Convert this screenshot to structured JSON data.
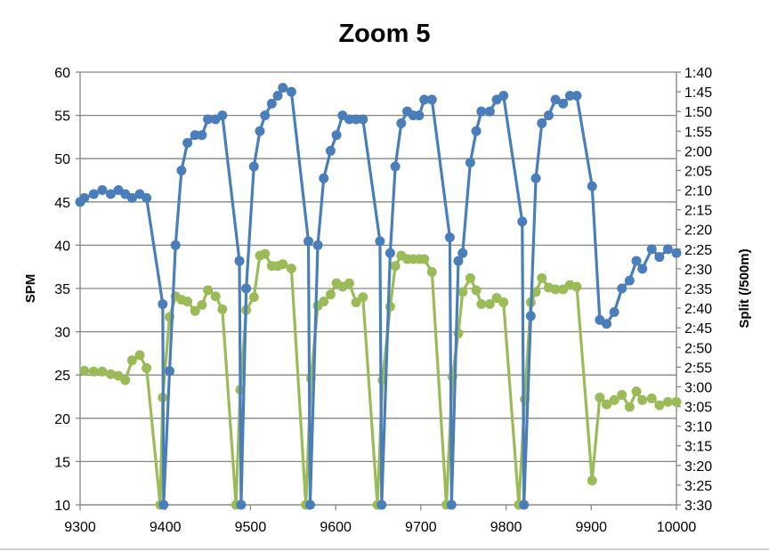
{
  "chart_data": {
    "type": "line",
    "title": "Zoom 5",
    "xlabel": "",
    "ylabel": "SPM",
    "y2label": "Split (/500m)",
    "xlim": [
      9300,
      10000
    ],
    "ylim": [
      10,
      60
    ],
    "y2lim_seconds": [
      100,
      210
    ],
    "y2_inverted": true,
    "grid": true,
    "x_ticks": [
      "9300",
      "9400",
      "9500",
      "9600",
      "9700",
      "9800",
      "9900",
      "10000"
    ],
    "y_ticks": [
      "10",
      "15",
      "20",
      "25",
      "30",
      "35",
      "40",
      "45",
      "50",
      "55",
      "60"
    ],
    "y2_ticks": [
      "1:40",
      "1:45",
      "1:50",
      "1:55",
      "2:00",
      "2:05",
      "2:10",
      "2:15",
      "2:20",
      "2:25",
      "2:30",
      "2:35",
      "2:40",
      "2:45",
      "2:50",
      "2:55",
      "3:00",
      "3:05",
      "3:10",
      "3:15",
      "3:20",
      "3:25",
      "3:30"
    ],
    "series": [
      {
        "name": "Split",
        "axis": "right",
        "unit": "seconds per 500m",
        "color": "#4a7ebb",
        "x": [
          9300,
          9305,
          9316,
          9326,
          9336,
          9345,
          9353,
          9361,
          9370,
          9378,
          9397,
          9398,
          9405,
          9412,
          9419,
          9426,
          9435,
          9443,
          9450,
          9459,
          9467,
          9487,
          9489,
          9495,
          9504,
          9511,
          9517,
          9525,
          9532,
          9538,
          9548,
          9568,
          9570,
          9579,
          9586,
          9594,
          9601,
          9608,
          9616,
          9624,
          9632,
          9652,
          9654,
          9664,
          9670,
          9677,
          9684,
          9691,
          9698,
          9704,
          9713,
          9734,
          9736,
          9744,
          9749,
          9758,
          9765,
          9771,
          9781,
          9789,
          9797,
          9819,
          9821,
          9829,
          9835,
          9842,
          9850,
          9858,
          9867,
          9875,
          9883,
          9901,
          9910,
          9918,
          9927,
          9936,
          9945,
          9953,
          9960,
          9971,
          9980,
          9990,
          10000
        ],
        "values": [
          133,
          132,
          131,
          130,
          131,
          130,
          131,
          132,
          131,
          132,
          159,
          210,
          176,
          144,
          125,
          118,
          116,
          116,
          112,
          112,
          111,
          148,
          210,
          155,
          124,
          115,
          111,
          108,
          106,
          104,
          105,
          143,
          210,
          144,
          127,
          120,
          116,
          111,
          112,
          112,
          112,
          143,
          210,
          146,
          124,
          113,
          110,
          111,
          111,
          107,
          107,
          142,
          210,
          148,
          146,
          123,
          115,
          110,
          110,
          107,
          106,
          138,
          210,
          162,
          127,
          113,
          111,
          107,
          108,
          106,
          106,
          129,
          163,
          164,
          161,
          155,
          153,
          148,
          150,
          145,
          147,
          145,
          146
        ]
      },
      {
        "name": "SPM",
        "axis": "left",
        "unit": "strokes per minute",
        "color": "#9bbb59",
        "x": [
          9305,
          9316,
          9326,
          9336,
          9345,
          9353,
          9361,
          9370,
          9378,
          9394,
          9397,
          9405,
          9412,
          9419,
          9426,
          9435,
          9443,
          9450,
          9459,
          9467,
          9483,
          9488,
          9495,
          9504,
          9511,
          9517,
          9525,
          9532,
          9538,
          9548,
          9565,
          9571,
          9579,
          9586,
          9594,
          9601,
          9608,
          9616,
          9624,
          9632,
          9649,
          9655,
          9664,
          9670,
          9677,
          9684,
          9691,
          9698,
          9704,
          9713,
          9730,
          9737,
          9744,
          9749,
          9758,
          9765,
          9771,
          9781,
          9789,
          9797,
          9815,
          9822,
          9829,
          9835,
          9842,
          9850,
          9858,
          9867,
          9875,
          9883,
          9901,
          9910,
          9918,
          9927,
          9936,
          9945,
          9953,
          9960,
          9971,
          9980,
          9990,
          10000
        ],
        "values": [
          25.5,
          25.4,
          25.4,
          25.1,
          24.9,
          24.4,
          26.7,
          27.3,
          25.8,
          10,
          22.4,
          31.7,
          34.1,
          33.7,
          33.5,
          32.4,
          33.1,
          34.8,
          34.1,
          32.6,
          10,
          23.3,
          32.5,
          34,
          38.8,
          39,
          37.6,
          37.6,
          37.8,
          37.3,
          10,
          24.6,
          33,
          33.5,
          34.3,
          35.6,
          35.2,
          35.6,
          33.4,
          34,
          10,
          24.4,
          32.9,
          37.6,
          38.8,
          38.4,
          38.4,
          38.4,
          38.4,
          36.9,
          10,
          24.8,
          29.8,
          34.6,
          36.2,
          34.8,
          33.2,
          33.2,
          33.9,
          33.4,
          10,
          22.2,
          33.4,
          34.6,
          36.2,
          35.1,
          34.9,
          34.9,
          35.4,
          35.2,
          12.8,
          22.4,
          21.6,
          22.1,
          22.7,
          21.3,
          23.1,
          22.1,
          22.3,
          21.5,
          21.9,
          21.9
        ]
      }
    ]
  }
}
